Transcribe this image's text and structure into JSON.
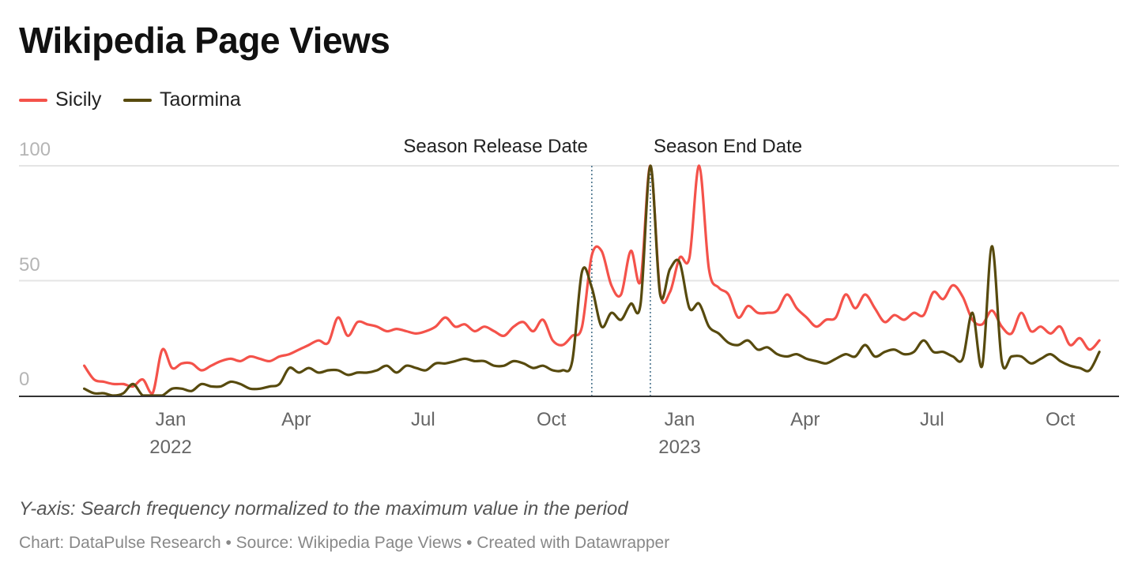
{
  "title": "Wikipedia Page Views",
  "legend": [
    {
      "label": "Sicily",
      "color": "#f4524a"
    },
    {
      "label": "Taormina",
      "color": "#574a0e"
    }
  ],
  "footer": {
    "note": "Y-axis: Search frequency normalized to the maximum value in the period",
    "source": "Chart: DataPulse Research • Source: Wikipedia Page Views • Created with Datawrapper"
  },
  "chart_data": {
    "type": "line",
    "title": "Wikipedia Page Views",
    "xlabel": "",
    "ylabel": "Search frequency normalized to the maximum value in the period",
    "ylim": [
      0,
      100
    ],
    "y_ticks": [
      "100",
      "50",
      "0"
    ],
    "y_tick_values": [
      100,
      50,
      0
    ],
    "x_start": "2021-10-31",
    "x_interval_days": 7,
    "x_range": [
      "2021-10-31",
      "2023-10-29"
    ],
    "x_ticks": [
      {
        "date": "2022-01-01",
        "label": "Jan",
        "year": "2022"
      },
      {
        "date": "2022-04-01",
        "label": "Apr",
        "year": ""
      },
      {
        "date": "2022-07-01",
        "label": "Jul",
        "year": ""
      },
      {
        "date": "2022-10-01",
        "label": "Oct",
        "year": ""
      },
      {
        "date": "2023-01-01",
        "label": "Jan",
        "year": "2023"
      },
      {
        "date": "2023-04-01",
        "label": "Apr",
        "year": ""
      },
      {
        "date": "2023-07-01",
        "label": "Jul",
        "year": ""
      },
      {
        "date": "2023-10-01",
        "label": "Oct",
        "year": ""
      }
    ],
    "grid": true,
    "legend_position": "top-left",
    "annotations": [
      {
        "label": "Season Release Date",
        "date": "2022-10-30",
        "align": "right"
      },
      {
        "label": "Season End Date",
        "date": "2022-12-11",
        "align": "left"
      }
    ],
    "series": [
      {
        "name": "Sicily",
        "color": "#f4524a",
        "values": [
          13,
          7,
          6,
          5,
          5,
          4,
          7,
          1,
          20,
          12,
          14,
          14,
          11,
          13,
          15,
          16,
          15,
          17,
          16,
          15,
          17,
          18,
          20,
          22,
          24,
          23,
          34,
          26,
          32,
          31,
          30,
          28,
          29,
          28,
          27,
          28,
          30,
          34,
          30,
          31,
          28,
          30,
          28,
          26,
          30,
          32,
          28,
          33,
          24,
          22,
          26,
          30,
          61,
          63,
          48,
          44,
          63,
          50,
          100,
          45,
          45,
          60,
          60,
          100,
          55,
          47,
          44,
          34,
          39,
          36,
          36,
          37,
          44,
          38,
          34,
          30,
          33,
          34,
          44,
          38,
          44,
          38,
          32,
          35,
          33,
          36,
          35,
          45,
          42,
          48,
          43,
          33,
          31,
          37,
          30,
          27,
          36,
          28,
          30,
          27,
          30,
          22,
          25,
          20,
          24
        ]
      },
      {
        "name": "Taormina",
        "color": "#574a0e",
        "values": [
          3,
          1,
          1,
          0,
          1,
          5,
          0,
          0,
          0,
          3,
          3,
          2,
          5,
          4,
          4,
          6,
          5,
          3,
          3,
          4,
          5,
          12,
          10,
          12,
          10,
          11,
          11,
          9,
          10,
          10,
          11,
          13,
          10,
          13,
          12,
          11,
          14,
          14,
          15,
          16,
          15,
          15,
          13,
          13,
          15,
          14,
          12,
          13,
          11,
          11,
          15,
          54,
          47,
          30,
          36,
          33,
          40,
          40,
          100,
          44,
          55,
          58,
          38,
          40,
          30,
          27,
          23,
          22,
          24,
          20,
          21,
          18,
          17,
          18,
          16,
          15,
          14,
          16,
          18,
          17,
          22,
          17,
          19,
          20,
          18,
          19,
          24,
          19,
          19,
          17,
          16,
          36,
          13,
          65,
          15,
          17,
          17,
          14,
          16,
          18,
          15,
          13,
          12,
          11,
          19
        ]
      }
    ]
  }
}
